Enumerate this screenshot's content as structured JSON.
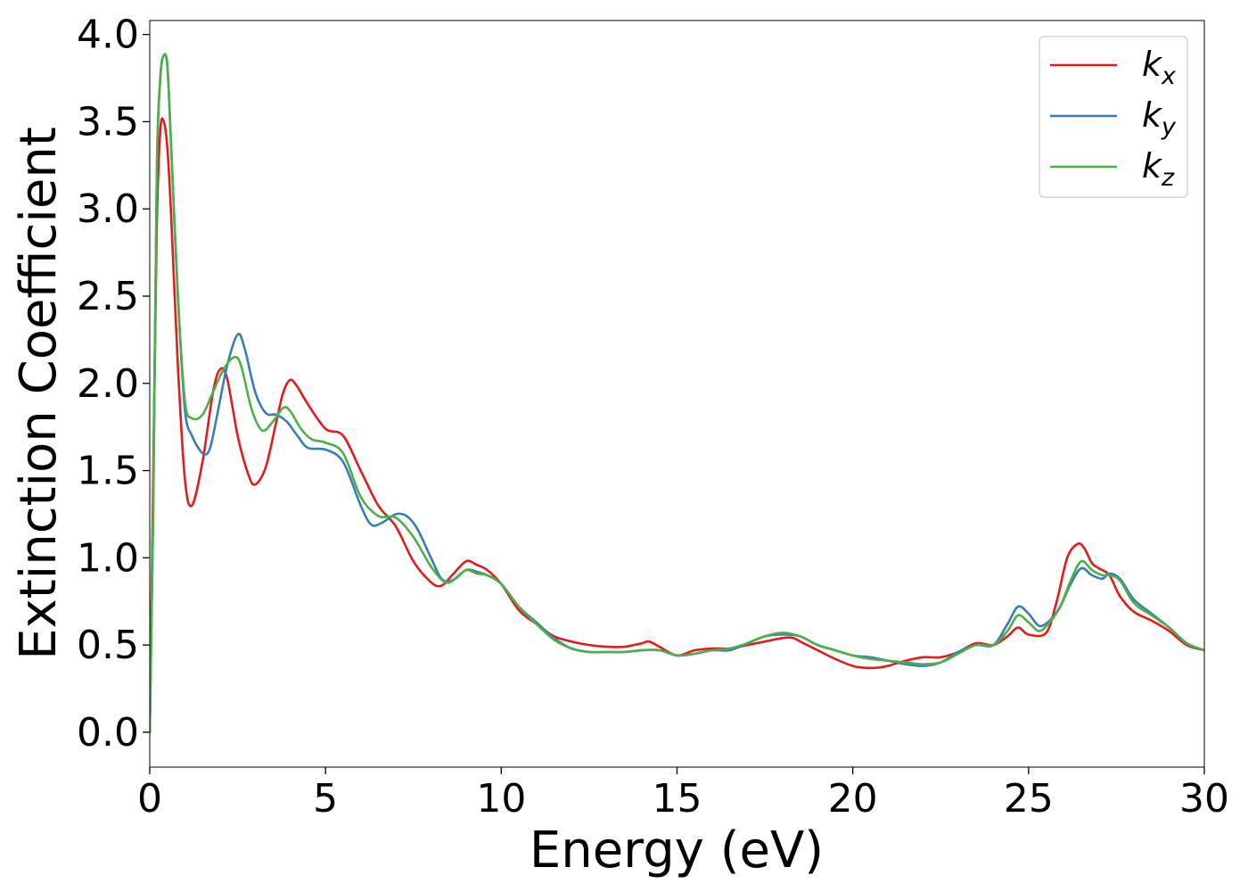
{
  "chart_data": {
    "type": "line",
    "xlabel": "Energy (eV)",
    "ylabel": "Extinction Coefficient",
    "xlim": [
      0,
      30
    ],
    "ylim": [
      -0.2,
      4.08
    ],
    "xticks": [
      0,
      5,
      10,
      15,
      20,
      25,
      30
    ],
    "xtick_labels": [
      "0",
      "5",
      "10",
      "15",
      "20",
      "25",
      "30"
    ],
    "yticks": [
      0.0,
      0.5,
      1.0,
      1.5,
      2.0,
      2.5,
      3.0,
      3.5,
      4.0
    ],
    "ytick_labels": [
      "0.0",
      "0.5",
      "1.0",
      "1.5",
      "2.0",
      "2.5",
      "3.0",
      "3.5",
      "4.0"
    ],
    "grid": false,
    "legend_position": "top-right",
    "series": [
      {
        "name": "k_x",
        "label_main": "k",
        "label_sub": "x",
        "color": "#e41a1c",
        "x": [
          0,
          0.1,
          0.2,
          0.3,
          0.4,
          0.5,
          0.6,
          0.8,
          1.0,
          1.2,
          1.5,
          1.8,
          2.0,
          2.2,
          2.5,
          2.8,
          3.0,
          3.3,
          3.6,
          3.8,
          4.0,
          4.2,
          4.5,
          5.0,
          5.5,
          6.0,
          6.5,
          7.0,
          7.5,
          8.0,
          8.3,
          8.6,
          9.0,
          9.3,
          9.6,
          10.0,
          10.5,
          11.0,
          11.5,
          12.0,
          12.5,
          13.0,
          13.5,
          14.0,
          14.2,
          14.5,
          15.0,
          15.5,
          16.0,
          16.5,
          17.0,
          17.5,
          18.0,
          18.3,
          18.6,
          19.0,
          19.5,
          20.0,
          20.3,
          20.7,
          21.0,
          21.5,
          22.0,
          22.5,
          23.0,
          23.5,
          24.0,
          24.4,
          24.7,
          25.0,
          25.5,
          25.8,
          26.1,
          26.4,
          26.6,
          26.8,
          27.0,
          27.3,
          27.6,
          28.0,
          28.5,
          29.0,
          29.5,
          30.0
        ],
        "y": [
          0.0,
          1.5,
          2.9,
          3.45,
          3.5,
          3.35,
          3.0,
          2.1,
          1.45,
          1.3,
          1.55,
          1.95,
          2.08,
          2.03,
          1.7,
          1.48,
          1.42,
          1.52,
          1.78,
          1.95,
          2.02,
          1.98,
          1.88,
          1.74,
          1.7,
          1.5,
          1.3,
          1.18,
          0.98,
          0.86,
          0.84,
          0.9,
          0.98,
          0.96,
          0.93,
          0.85,
          0.7,
          0.62,
          0.55,
          0.52,
          0.5,
          0.49,
          0.49,
          0.51,
          0.52,
          0.49,
          0.44,
          0.47,
          0.48,
          0.48,
          0.5,
          0.52,
          0.54,
          0.54,
          0.51,
          0.47,
          0.42,
          0.38,
          0.37,
          0.37,
          0.38,
          0.41,
          0.43,
          0.43,
          0.46,
          0.51,
          0.5,
          0.55,
          0.6,
          0.56,
          0.57,
          0.75,
          1.0,
          1.08,
          1.05,
          0.97,
          0.94,
          0.9,
          0.78,
          0.69,
          0.64,
          0.58,
          0.5,
          0.47
        ]
      },
      {
        "name": "k_y",
        "label_main": "k",
        "label_sub": "y",
        "color": "#377eb8",
        "x": [
          0,
          0.1,
          0.2,
          0.3,
          0.4,
          0.5,
          0.6,
          0.8,
          1.0,
          1.2,
          1.5,
          1.7,
          1.9,
          2.2,
          2.5,
          2.7,
          3.0,
          3.3,
          3.6,
          3.9,
          4.2,
          4.5,
          5.0,
          5.5,
          6.0,
          6.3,
          6.6,
          7.0,
          7.3,
          7.6,
          8.0,
          8.3,
          8.6,
          9.0,
          9.3,
          9.6,
          10.0,
          10.5,
          11.0,
          11.5,
          12.0,
          12.5,
          13.0,
          13.5,
          14.0,
          14.5,
          15.0,
          15.5,
          16.0,
          16.5,
          17.0,
          17.5,
          18.0,
          18.5,
          19.0,
          19.5,
          20.0,
          20.5,
          21.0,
          21.5,
          22.0,
          22.5,
          23.0,
          23.5,
          24.0,
          24.4,
          24.7,
          25.0,
          25.3,
          25.6,
          25.9,
          26.2,
          26.5,
          26.8,
          27.1,
          27.3,
          27.6,
          28.0,
          28.5,
          29.0,
          29.5,
          30.0
        ],
        "y": [
          0.0,
          1.3,
          3.2,
          3.75,
          3.88,
          3.82,
          3.4,
          2.5,
          1.85,
          1.7,
          1.6,
          1.62,
          1.8,
          2.1,
          2.28,
          2.2,
          1.95,
          1.83,
          1.82,
          1.78,
          1.7,
          1.63,
          1.62,
          1.55,
          1.3,
          1.19,
          1.2,
          1.25,
          1.24,
          1.17,
          1.0,
          0.88,
          0.87,
          0.93,
          0.92,
          0.9,
          0.85,
          0.72,
          0.63,
          0.54,
          0.48,
          0.46,
          0.46,
          0.46,
          0.47,
          0.47,
          0.44,
          0.45,
          0.47,
          0.47,
          0.51,
          0.55,
          0.56,
          0.55,
          0.5,
          0.47,
          0.44,
          0.43,
          0.41,
          0.39,
          0.38,
          0.4,
          0.46,
          0.5,
          0.5,
          0.62,
          0.72,
          0.68,
          0.61,
          0.64,
          0.72,
          0.85,
          0.94,
          0.9,
          0.88,
          0.91,
          0.88,
          0.76,
          0.68,
          0.6,
          0.51,
          0.47
        ]
      },
      {
        "name": "k_z",
        "label_main": "k",
        "label_sub": "z",
        "color": "#4daf4a",
        "x": [
          0,
          0.1,
          0.2,
          0.3,
          0.4,
          0.5,
          0.6,
          0.8,
          1.0,
          1.2,
          1.5,
          1.8,
          2.1,
          2.4,
          2.6,
          2.9,
          3.2,
          3.5,
          3.8,
          4.0,
          4.3,
          4.6,
          5.0,
          5.5,
          6.0,
          6.5,
          7.0,
          7.5,
          8.0,
          8.4,
          8.7,
          9.0,
          9.3,
          9.6,
          10.0,
          10.5,
          11.0,
          11.5,
          12.0,
          12.5,
          13.0,
          13.5,
          14.0,
          14.5,
          15.0,
          15.5,
          16.0,
          16.5,
          17.0,
          17.5,
          18.0,
          18.5,
          19.0,
          19.5,
          20.0,
          20.5,
          21.0,
          21.5,
          22.0,
          22.5,
          23.0,
          23.5,
          24.0,
          24.4,
          24.7,
          25.0,
          25.3,
          25.6,
          25.9,
          26.2,
          26.5,
          26.8,
          27.1,
          27.3,
          27.6,
          28.0,
          28.5,
          29.0,
          29.5,
          30.0
        ],
        "y": [
          0.0,
          1.3,
          3.2,
          3.75,
          3.88,
          3.82,
          3.4,
          2.5,
          1.9,
          1.8,
          1.82,
          1.95,
          2.08,
          2.15,
          2.1,
          1.85,
          1.73,
          1.78,
          1.86,
          1.84,
          1.74,
          1.68,
          1.66,
          1.6,
          1.35,
          1.24,
          1.23,
          1.12,
          0.95,
          0.86,
          0.88,
          0.93,
          0.91,
          0.9,
          0.85,
          0.72,
          0.62,
          0.53,
          0.48,
          0.46,
          0.46,
          0.46,
          0.47,
          0.47,
          0.44,
          0.45,
          0.47,
          0.48,
          0.51,
          0.55,
          0.57,
          0.55,
          0.5,
          0.47,
          0.44,
          0.42,
          0.41,
          0.4,
          0.39,
          0.4,
          0.45,
          0.5,
          0.5,
          0.58,
          0.67,
          0.63,
          0.58,
          0.63,
          0.72,
          0.87,
          0.98,
          0.93,
          0.9,
          0.9,
          0.87,
          0.74,
          0.67,
          0.6,
          0.51,
          0.47
        ]
      }
    ]
  }
}
